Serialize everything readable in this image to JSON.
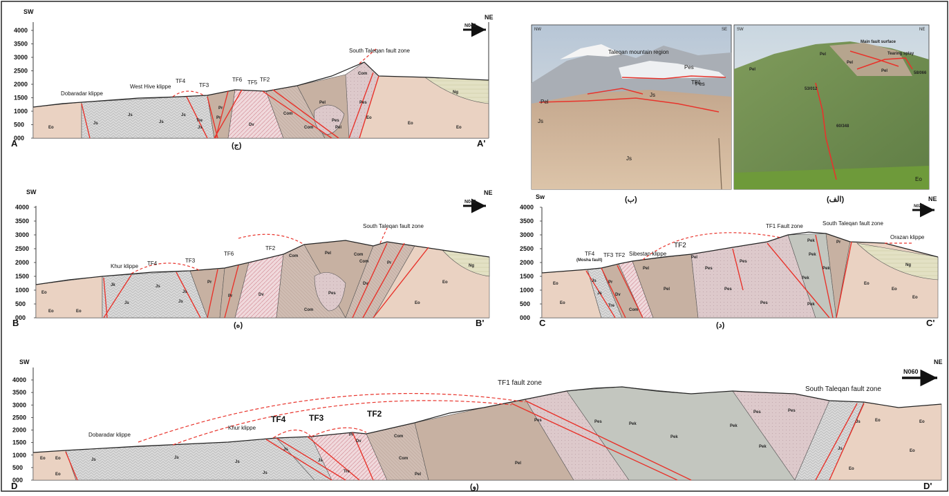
{
  "panels": {
    "A": {
      "sw": "SW",
      "ne": "NE",
      "azimuth": "N040",
      "left_end": "A",
      "right_end": "A'",
      "caption": "(ج)",
      "y_ticks": [
        "4000",
        "3500",
        "3000",
        "2500",
        "2000",
        "1500",
        "1000",
        "500",
        "000"
      ],
      "labels": {
        "dobaradar": "Dobaradar klippe",
        "westhive": "West Hive klippe",
        "tf4": "TF4",
        "tf3": "TF3",
        "tf6": "TF6",
        "tf5": "TF5",
        "tf2": "TF2",
        "stfz": "South Taleqan fault zone"
      },
      "units": [
        "Eo",
        "Js",
        "Js",
        "Js",
        "Js",
        "Js",
        "Tre",
        "Pr",
        "Pr",
        "Dv",
        "Com",
        "Com",
        "Pel",
        "Pel",
        "Pes",
        "Eo",
        "Eo",
        "Eo",
        "Ng",
        "Com",
        "Pes"
      ]
    },
    "B": {
      "sw": "SW",
      "ne": "NE",
      "azimuth": "N040",
      "left_end": "B",
      "right_end": "B'",
      "caption": "(ه)",
      "y_ticks": [
        "4000",
        "3500",
        "3000",
        "2500",
        "2000",
        "1500",
        "1000",
        "500",
        "000"
      ],
      "labels": {
        "khur": "Khur klippe",
        "tf4": "TF4",
        "tf3": "TF3",
        "tf6": "TF6",
        "tf2": "TF2",
        "stfz": "South Taleqan fault zone"
      },
      "units": [
        "Eo",
        "Eo",
        "Eo",
        "Jk",
        "Js",
        "Js",
        "Js",
        "Js",
        "Pr",
        "Pr",
        "Dv",
        "Com",
        "Com",
        "Pel",
        "Pes",
        "Com",
        "Com",
        "Dv",
        "Pr",
        "Eo",
        "Eo",
        "Ng"
      ]
    },
    "C": {
      "sw": "Sw",
      "ne": "NE",
      "azimuth": "N025",
      "left_end": "C",
      "right_end": "C'",
      "caption": "(د)",
      "y_ticks": [
        "4000",
        "3500",
        "3000",
        "2500",
        "2000",
        "1500",
        "1000",
        "500",
        "000"
      ],
      "labels": {
        "tf4": "TF4",
        "tf4sub": "(Mosha fault)",
        "tf3": "TF3",
        "tf2a": "TF2",
        "sibestan": "Sibestan klippe",
        "tf2b": "TF2",
        "tf1": "TF1 Fault zone",
        "stfz": "South Taleqan fault zone",
        "orazan": "Orazan klippe"
      },
      "units": [
        "Eo",
        "Eo",
        "Js",
        "Js",
        "Pr",
        "Dv",
        "Tre",
        "Com",
        "Pel",
        "Pel",
        "Pel",
        "Pes",
        "Pes",
        "Pes",
        "Pes",
        "Pek",
        "Pek",
        "Pek",
        "Pek",
        "Pek",
        "Pr",
        "Eo",
        "Eo",
        "Eo",
        "Ng"
      ]
    },
    "D": {
      "sw": "SW",
      "ne": "NE",
      "azimuth": "N060",
      "left_end": "D",
      "right_end": "D'",
      "caption": "(و)",
      "y_ticks": [
        "4000",
        "3500",
        "3000",
        "2500",
        "2000",
        "1500",
        "1000",
        "500",
        "000"
      ],
      "labels": {
        "dobaradar": "Dobaradar klippe",
        "khur": "Khur klippe",
        "tf4": "TF4",
        "tf3": "TF3",
        "tf2": "TF2",
        "tf1": "TF1 fault zone",
        "stfz": "South Taleqan fault zone"
      },
      "units": [
        "Eo",
        "Eo",
        "Eo",
        "Js",
        "Js",
        "Js",
        "Js",
        "Js",
        "Js",
        "Pr",
        "Dv",
        "Com",
        "Com",
        "Tre",
        "Pel",
        "Pel",
        "Pes",
        "Pes",
        "Pek",
        "Pek",
        "Pes",
        "Pek",
        "Pek",
        "Pes",
        "Js",
        "Js",
        "Eo",
        "Eo",
        "Eo",
        "Eo"
      ]
    }
  },
  "photos": {
    "b": {
      "caption": "(ب)",
      "nw": "NW",
      "se": "SE",
      "title": "Taleqan mountain region",
      "tf1": "TF1",
      "units": [
        "Pes",
        "Pes",
        "Pel",
        "Js",
        "Js",
        "Js"
      ]
    },
    "alef": {
      "caption": "(الف)",
      "sw": "SW",
      "ne": "NE",
      "main_fault": "Main fault surface",
      "tearing": "Tearing splay",
      "units": [
        "Pel",
        "Pel",
        "Pel",
        "Pel"
      ],
      "measurements": [
        "53/012",
        "58/066",
        "60/348"
      ],
      "eo": "Eo"
    }
  },
  "colors": {
    "eo": "#ead2c2",
    "js": "#d8d8d8",
    "pel": "#c7b1a2",
    "pes": "#dcc8cb",
    "pek": "#c3c6bf",
    "ng": "#e2e0c3",
    "dv": "#ecd3d7",
    "fault": "#e8332b"
  }
}
